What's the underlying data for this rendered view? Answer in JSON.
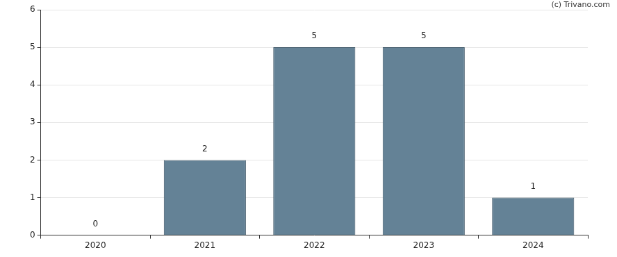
{
  "chart_data": {
    "type": "bar",
    "annotations": [
      "(c) Trivano.com"
    ],
    "categories": [
      "2020",
      "2021",
      "2022",
      "2023",
      "2024"
    ],
    "values": [
      0,
      2,
      5,
      5,
      1
    ],
    "color": "#648296",
    "ylim": [
      0,
      6
    ],
    "yticks": [
      0,
      1,
      2,
      3,
      4,
      5,
      6
    ],
    "grid": true,
    "data_labels": true
  }
}
